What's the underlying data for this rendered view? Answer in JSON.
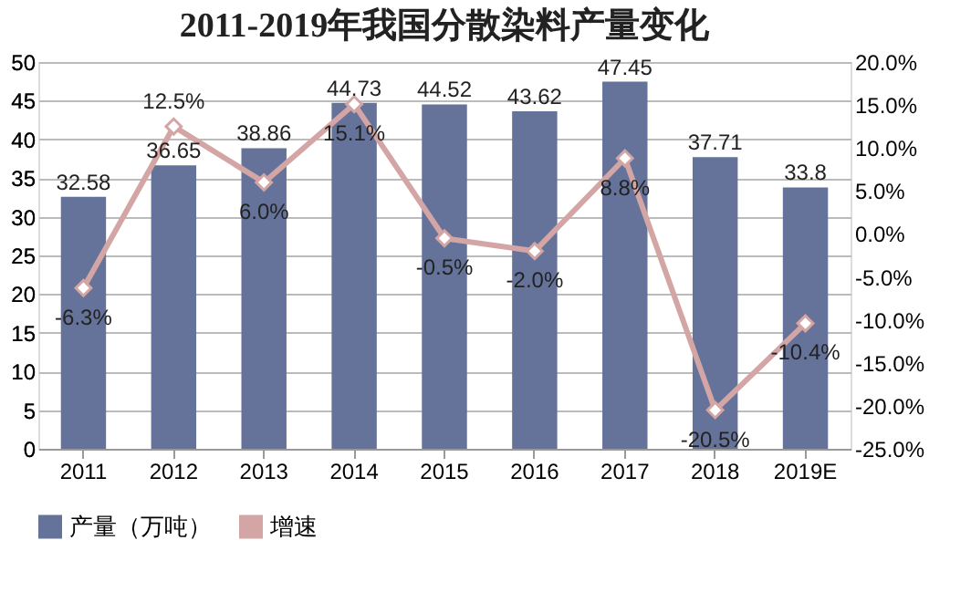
{
  "chart_data": {
    "type": "bar",
    "title": "2011-2019年我国分散染料产量变化",
    "categories": [
      "2011",
      "2012",
      "2013",
      "2014",
      "2015",
      "2016",
      "2017",
      "2018",
      "2019E"
    ],
    "series": [
      {
        "name": "产量（万吨）",
        "color": "#65739a",
        "values": [
          32.58,
          36.65,
          38.86,
          44.73,
          44.52,
          43.62,
          47.45,
          37.71,
          33.8
        ],
        "value_labels": [
          "32.58",
          "36.65",
          "38.86",
          "44.73",
          "44.52",
          "43.62",
          "47.45",
          "37.71",
          "33.8"
        ]
      },
      {
        "name": "增速",
        "type": "line",
        "axis": "y2",
        "color": "#d4a5a5",
        "marker": "diamond",
        "values": [
          -6.3,
          12.5,
          6.0,
          15.1,
          -0.5,
          -2.0,
          8.8,
          -20.5,
          -10.4
        ],
        "value_labels": [
          "-6.3%",
          "12.5%",
          "6.0%",
          "15.1%",
          "-0.5%",
          "-2.0%",
          "8.8%",
          "-20.5%",
          "-10.4%"
        ]
      }
    ],
    "ylim": [
      0,
      50
    ],
    "yticks": [
      0,
      5,
      10,
      15,
      20,
      25,
      30,
      35,
      40,
      45,
      50
    ],
    "y2lim": [
      -25,
      20
    ],
    "y2ticks": [
      {
        "value": -25,
        "label": "-25.0%"
      },
      {
        "value": -20,
        "label": "-20.0%"
      },
      {
        "value": -15,
        "label": "-15.0%"
      },
      {
        "value": -10,
        "label": "-10.0%"
      },
      {
        "value": -5,
        "label": "-5.0%"
      },
      {
        "value": 0,
        "label": "0.0%"
      },
      {
        "value": 5,
        "label": "5.0%"
      },
      {
        "value": 10,
        "label": "10.0%"
      },
      {
        "value": 15,
        "label": "15.0%"
      },
      {
        "value": 20,
        "label": "20.0%"
      }
    ],
    "grid": "y",
    "legend": "bottom"
  }
}
